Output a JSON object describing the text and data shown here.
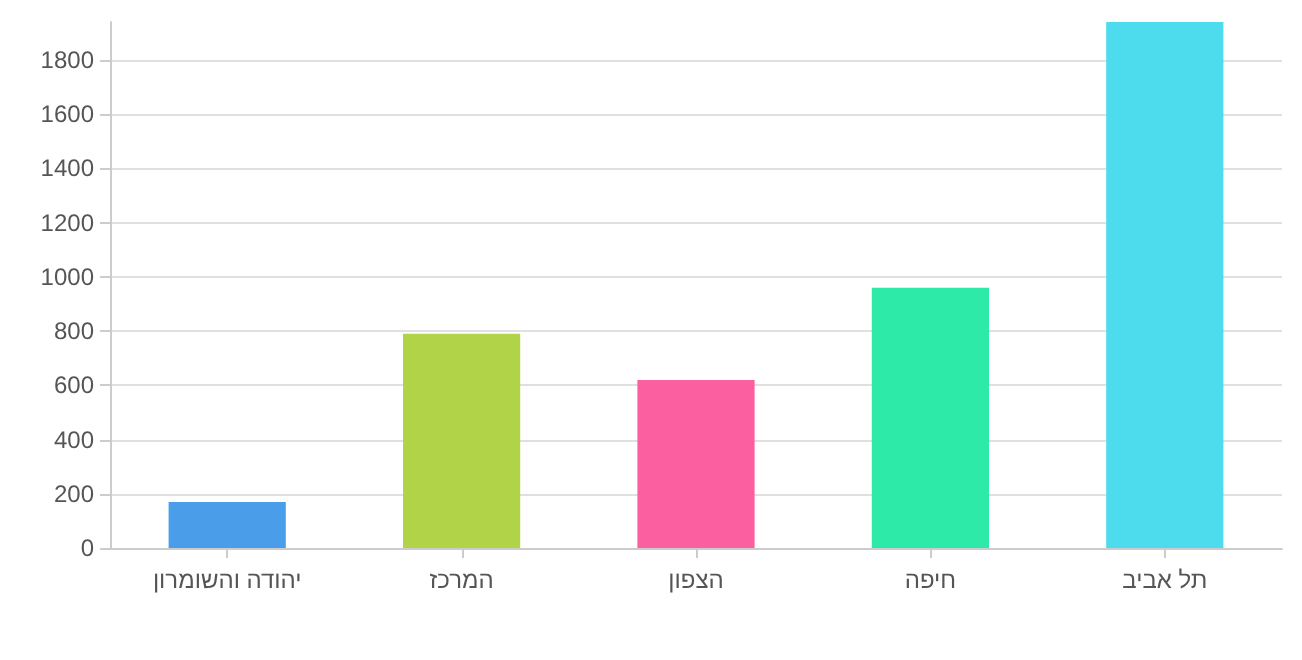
{
  "chart_data": {
    "type": "bar",
    "categories": [
      "יהודה והשומרון",
      "המרכז",
      "הצפון",
      "חיפה",
      "תל אביב"
    ],
    "values": [
      170,
      790,
      620,
      960,
      1940
    ],
    "colors": [
      "#4a9de8",
      "#b1d348",
      "#fb5fa0",
      "#2eeaa8",
      "#4ddcee"
    ],
    "ylim": [
      0,
      1940
    ],
    "yticks": [
      0,
      200,
      400,
      600,
      800,
      1000,
      1200,
      1400,
      1600,
      1800
    ],
    "grid": "y"
  }
}
